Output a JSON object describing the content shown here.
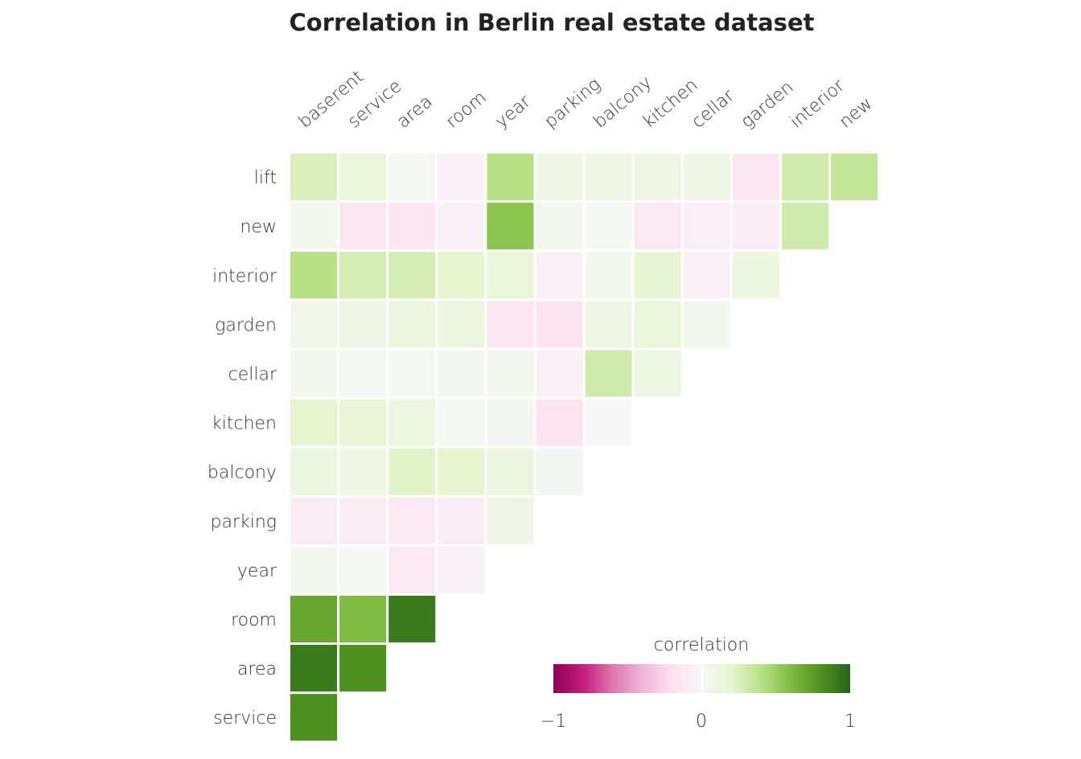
{
  "chart_data": {
    "type": "heatmap",
    "title": "Correlation in Berlin real estate dataset",
    "rows": [
      "lift",
      "new",
      "interior",
      "garden",
      "cellar",
      "kitchen",
      "balcony",
      "parking",
      "year",
      "room",
      "area",
      "service"
    ],
    "columns": [
      "baserent",
      "service",
      "area",
      "room",
      "year",
      "parking",
      "balcony",
      "kitchen",
      "cellar",
      "garden",
      "interior",
      "new"
    ],
    "values": [
      [
        0.25,
        0.15,
        0.02,
        -0.05,
        0.4,
        0.1,
        0.1,
        0.1,
        0.1,
        -0.15,
        0.3,
        0.35
      ],
      [
        0.05,
        -0.15,
        -0.15,
        -0.05,
        0.55,
        0.05,
        0.02,
        -0.12,
        -0.07,
        -0.1,
        0.3
      ],
      [
        0.4,
        0.28,
        0.28,
        0.2,
        0.15,
        -0.05,
        0.05,
        0.18,
        -0.05,
        0.13
      ],
      [
        0.06,
        0.1,
        0.13,
        0.13,
        -0.15,
        -0.17,
        0.1,
        0.15,
        0.05
      ],
      [
        0.05,
        0.02,
        0.02,
        0.03,
        0.05,
        -0.05,
        0.3,
        0.12
      ],
      [
        0.2,
        0.17,
        0.12,
        0.02,
        0.03,
        -0.17,
        0.0
      ],
      [
        0.13,
        0.1,
        0.22,
        0.2,
        0.13,
        0.03
      ],
      [
        -0.1,
        -0.1,
        -0.12,
        -0.1,
        0.08
      ],
      [
        0.04,
        0.02,
        -0.12,
        -0.05
      ],
      [
        0.7,
        0.6,
        0.9
      ],
      [
        0.9,
        0.8
      ],
      [
        0.8
      ]
    ],
    "legend": {
      "title": "correlation",
      "ticks": [
        "−1",
        "0",
        "1"
      ],
      "range": [
        -1,
        1
      ],
      "placement": "bottom-right"
    },
    "colormap": [
      "#8e0152",
      "#c51b7d",
      "#de77ae",
      "#f1b6da",
      "#fde0ef",
      "#f7f7f7",
      "#e6f5d0",
      "#b8e186",
      "#7fbc41",
      "#4d9221",
      "#276419"
    ]
  }
}
